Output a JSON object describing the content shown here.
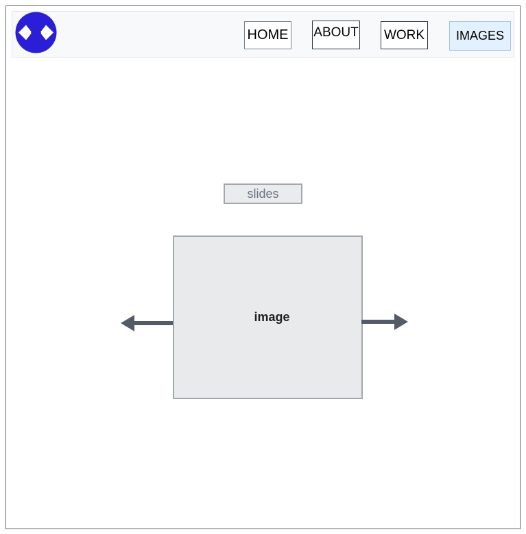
{
  "nav": {
    "items": [
      {
        "label": "HOME"
      },
      {
        "label": "ABOUT"
      },
      {
        "label": "WORK"
      },
      {
        "label": "IMAGES"
      }
    ],
    "active": "IMAGES"
  },
  "logo": {
    "icon": "diamond-arrows-logo-icon",
    "color": "#2a1fd6"
  },
  "carousel": {
    "title": "slides",
    "image_label": "image",
    "prev_icon": "arrow-left-icon",
    "next_icon": "arrow-right-icon",
    "arrow_color": "#555a68"
  },
  "colors": {
    "frame_border": "#5c6270",
    "nav_background": "#f8f9fa",
    "active_nav_background": "#e3f0fd",
    "active_nav_border": "#9fc4ea",
    "placeholder_fill": "#e9eaec"
  }
}
